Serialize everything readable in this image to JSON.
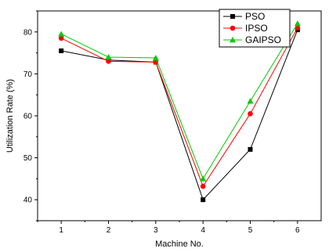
{
  "chart_data": {
    "type": "line",
    "title": "",
    "xlabel": "Machine No.",
    "ylabel": "Utilization Rate (%)",
    "x": [
      1,
      2,
      3,
      4,
      5,
      6
    ],
    "xlim": [
      0.5,
      6.5
    ],
    "ylim": [
      35,
      85
    ],
    "x_ticks": [
      "1",
      "2",
      "3",
      "4",
      "5",
      "6"
    ],
    "y_ticks": [
      "40",
      "50",
      "60",
      "70",
      "80"
    ],
    "legend": {
      "position": "top-right"
    },
    "grid": false,
    "series": [
      {
        "name": "PSO",
        "color": "#000000",
        "marker": "square",
        "values": [
          75.5,
          73.3,
          72.8,
          40.0,
          52.0,
          80.5
        ]
      },
      {
        "name": "IPSO",
        "color": "#ff0000",
        "marker": "circle",
        "values": [
          78.5,
          73.0,
          72.8,
          43.2,
          60.5,
          81.0
        ]
      },
      {
        "name": "GAIPSO",
        "color": "#00cc00",
        "marker": "triangle",
        "values": [
          79.5,
          74.0,
          73.8,
          45.0,
          63.5,
          82.0
        ]
      }
    ]
  }
}
